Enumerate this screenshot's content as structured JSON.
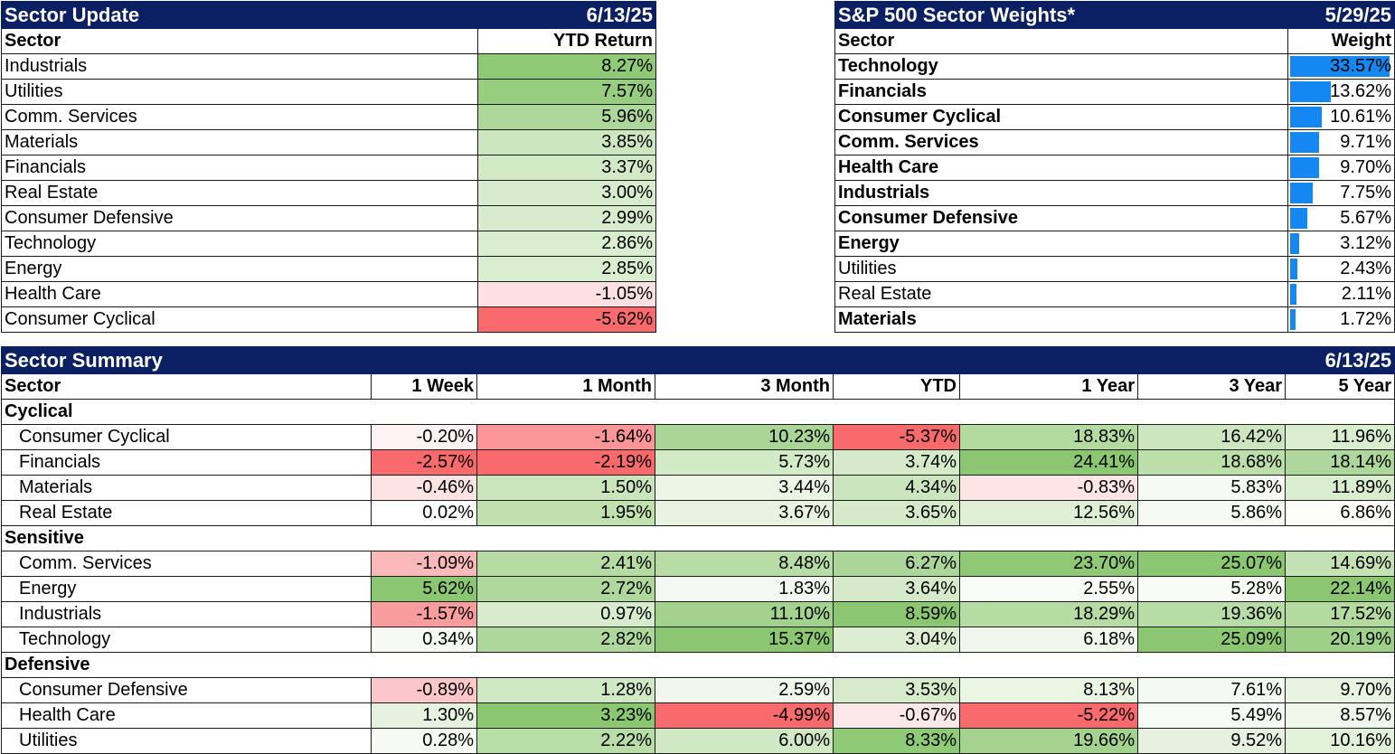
{
  "sector_update": {
    "title": "Sector Update",
    "date": "6/13/25",
    "col_sector": "Sector",
    "col_ytd": "YTD Return",
    "rows": [
      {
        "name": "Industrials",
        "value": "8.27%",
        "color": "#8fca77"
      },
      {
        "name": "Utilities",
        "value": "7.57%",
        "color": "#96cd7e"
      },
      {
        "name": "Comm. Services",
        "value": "5.96%",
        "color": "#aed79b"
      },
      {
        "name": "Materials",
        "value": "3.85%",
        "color": "#cde6c0"
      },
      {
        "name": "Financials",
        "value": "3.37%",
        "color": "#d2e9c6"
      },
      {
        "name": "Real Estate",
        "value": "3.00%",
        "color": "#d7eccc"
      },
      {
        "name": "Consumer Defensive",
        "value": "2.99%",
        "color": "#d7eccc"
      },
      {
        "name": "Technology",
        "value": "2.86%",
        "color": "#d9edcf"
      },
      {
        "name": "Energy",
        "value": "2.85%",
        "color": "#d9edcf"
      },
      {
        "name": "Health Care",
        "value": "-1.05%",
        "color": "#fde0e1"
      },
      {
        "name": "Consumer Cyclical",
        "value": "-5.62%",
        "color": "#f86a6b"
      }
    ]
  },
  "sector_weights": {
    "title": "S&P 500 Sector Weights*",
    "date": "5/29/25",
    "col_sector": "Sector",
    "col_weight": "Weight",
    "max_weight": 33.57,
    "bar_color": "#1488f0",
    "rows": [
      {
        "name": "Technology",
        "value": "33.57%",
        "weight": 33.57,
        "bold": true
      },
      {
        "name": "Financials",
        "value": "13.62%",
        "weight": 13.62,
        "bold": true
      },
      {
        "name": "Consumer Cyclical",
        "value": "10.61%",
        "weight": 10.61,
        "bold": true
      },
      {
        "name": "Comm. Services",
        "value": "9.71%",
        "weight": 9.71,
        "bold": true
      },
      {
        "name": "Health Care",
        "value": "9.70%",
        "weight": 9.7,
        "bold": true
      },
      {
        "name": "Industrials",
        "value": "7.75%",
        "weight": 7.75,
        "bold": true
      },
      {
        "name": "Consumer Defensive",
        "value": "5.67%",
        "weight": 5.67,
        "bold": true
      },
      {
        "name": "Energy",
        "value": "3.12%",
        "weight": 3.12,
        "bold": true
      },
      {
        "name": "Utilities",
        "value": "2.43%",
        "weight": 2.43,
        "bold": false
      },
      {
        "name": "Real Estate",
        "value": "2.11%",
        "weight": 2.11,
        "bold": false
      },
      {
        "name": "Materials",
        "value": "1.72%",
        "weight": 1.72,
        "bold": true
      }
    ]
  },
  "sector_summary": {
    "title": "Sector Summary",
    "date": "6/13/25",
    "columns": [
      "Sector",
      "1 Week",
      "1 Month",
      "3 Month",
      "YTD",
      "1 Year",
      "3 Year",
      "5 Year"
    ],
    "groups": [
      {
        "name": "Cyclical",
        "rows": [
          {
            "name": "Consumer Cyclical",
            "values": [
              "-0.20%",
              "-1.64%",
              "10.23%",
              "-5.37%",
              "18.83%",
              "16.42%",
              "11.96%"
            ],
            "colors": [
              "#fef3f4",
              "#fb9597",
              "#a9d597",
              "#f86a6b",
              "#b3da9f",
              "#cde6c0",
              "#d9edcf"
            ]
          },
          {
            "name": "Financials",
            "values": [
              "-2.57%",
              "-2.19%",
              "5.73%",
              "3.74%",
              "24.41%",
              "18.68%",
              "18.14%"
            ],
            "colors": [
              "#f86a6b",
              "#f86a6b",
              "#d3eac7",
              "#d4eac8",
              "#8bc771",
              "#bcdea9",
              "#aed79b"
            ]
          },
          {
            "name": "Materials",
            "values": [
              "-0.46%",
              "1.50%",
              "3.44%",
              "4.34%",
              "-0.83%",
              "5.83%",
              "11.89%"
            ],
            "colors": [
              "#fde3e4",
              "#cae5bc",
              "#ebf5e5",
              "#cbe5be",
              "#fde4e5",
              "#f6faf3",
              "#d9edcf"
            ]
          },
          {
            "name": "Real Estate",
            "values": [
              "0.02%",
              "1.95%",
              "3.67%",
              "3.65%",
              "12.56%",
              "5.86%",
              "6.86%"
            ],
            "colors": [
              "#ffffff",
              "#c0e0ae",
              "#e8f3e1",
              "#d4eac8",
              "#dfefd6",
              "#f6faf3",
              "#fcfdfb"
            ]
          }
        ]
      },
      {
        "name": "Sensitive",
        "rows": [
          {
            "name": "Comm. Services",
            "values": [
              "-1.09%",
              "2.41%",
              "8.48%",
              "6.27%",
              "23.70%",
              "25.07%",
              "14.69%"
            ],
            "colors": [
              "#fbb8b9",
              "#b5dba2",
              "#b8dca5",
              "#acd699",
              "#8fc976",
              "#8bc771",
              "#c3e1b3"
            ]
          },
          {
            "name": "Energy",
            "values": [
              "5.62%",
              "2.72%",
              "1.83%",
              "3.64%",
              "2.55%",
              "5.28%",
              "22.14%"
            ],
            "colors": [
              "#8bc771",
              "#b0d89d",
              "#f3f9f0",
              "#d4eac8",
              "#fafcf8",
              "#f8fbf6",
              "#8bc771"
            ]
          },
          {
            "name": "Industrials",
            "values": [
              "-1.57%",
              "0.97%",
              "11.10%",
              "8.59%",
              "18.29%",
              "19.36%",
              "17.52%"
            ],
            "colors": [
              "#f99c9d",
              "#d7eccc",
              "#a2d28e",
              "#8bc771",
              "#b6dba3",
              "#b8dca5",
              "#b3da9f"
            ]
          },
          {
            "name": "Technology",
            "values": [
              "0.34%",
              "2.82%",
              "15.37%",
              "3.04%",
              "6.18%",
              "25.09%",
              "20.19%"
            ],
            "colors": [
              "#f6faf3",
              "#aed79b",
              "#8bc771",
              "#dcedd2",
              "#f0f7ec",
              "#8bc771",
              "#9fd08a"
            ]
          }
        ]
      },
      {
        "name": "Defensive",
        "rows": [
          {
            "name": "Consumer Defensive",
            "values": [
              "-0.89%",
              "1.28%",
              "2.59%",
              "3.53%",
              "8.13%",
              "7.61%",
              "9.70%"
            ],
            "colors": [
              "#fcc7c8",
              "#d0e8c4",
              "#f0f7ec",
              "#d6ebca",
              "#eaf5e3",
              "#f4f9f1",
              "#e8f3e1"
            ]
          },
          {
            "name": "Health Care",
            "values": [
              "1.30%",
              "3.23%",
              "-4.99%",
              "-0.67%",
              "-5.22%",
              "5.49%",
              "8.57%"
            ],
            "colors": [
              "#e6f2df",
              "#8bc771",
              "#f86a6b",
              "#fde8e9",
              "#f86a6b",
              "#f7fbf5",
              "#eff7ea"
            ]
          },
          {
            "name": "Utilities",
            "values": [
              "0.28%",
              "2.22%",
              "6.00%",
              "8.33%",
              "19.66%",
              "9.52%",
              "10.16%"
            ],
            "colors": [
              "#f6faf3",
              "#b9dda7",
              "#d1e8c5",
              "#8fca77",
              "#a3d38f",
              "#e6f2df",
              "#e2f1da"
            ]
          }
        ]
      }
    ]
  }
}
